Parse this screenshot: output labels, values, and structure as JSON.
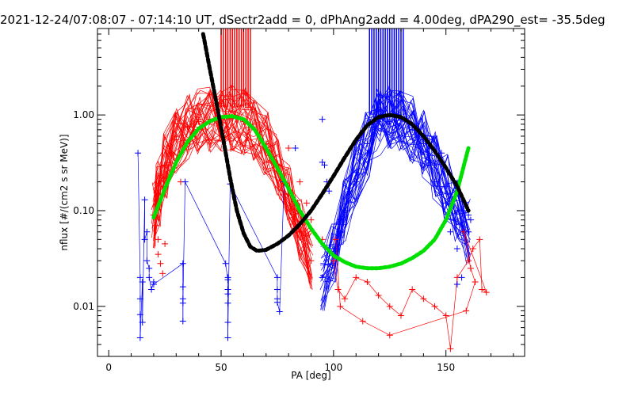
{
  "chart_data": {
    "type": "scatter",
    "title": "2021-12-24/07:08:07 - 07:14:10 UT, dSectr2add = 0, dPhAng2add = 4.00deg, dPA290_est= -35.5deg",
    "xlabel": "PA [deg]",
    "ylabel": "nflux [#/(cm2 s sr MeV)]",
    "xlim": [
      -5,
      185
    ],
    "ylim": [
      0.003,
      8.0
    ],
    "yscale": "log",
    "grid": false,
    "xticks": [
      0,
      50,
      100,
      150
    ],
    "xtick_labels": [
      "0",
      "50",
      "100",
      "150"
    ],
    "yticks": [
      0.01,
      0.1,
      1.0
    ],
    "ytick_labels": [
      "0.01",
      "0.10",
      "1.00"
    ],
    "colors": {
      "red": "#ff0000",
      "blue": "#0000ff",
      "green": "#00e000",
      "black": "#000000"
    },
    "series": [
      {
        "color": "red",
        "marker": "+",
        "style": "lines+markers",
        "x": [
          20,
          22,
          25,
          30,
          35,
          40,
          45,
          50,
          55,
          60,
          65,
          70,
          75,
          80,
          85,
          90
        ],
        "y": [
          0.09,
          0.15,
          0.3,
          0.55,
          0.75,
          0.85,
          0.9,
          0.9,
          0.92,
          0.85,
          0.7,
          0.5,
          0.3,
          0.15,
          0.06,
          0.03
        ]
      },
      {
        "color": "blue",
        "marker": "+",
        "style": "lines+markers",
        "x": [
          95,
          100,
          105,
          110,
          115,
          120,
          125,
          130,
          135,
          140,
          145,
          150,
          155,
          160
        ],
        "y": [
          0.02,
          0.04,
          0.1,
          0.25,
          0.5,
          0.85,
          0.95,
          0.9,
          0.7,
          0.5,
          0.3,
          0.18,
          0.1,
          0.06
        ]
      },
      {
        "color": "green",
        "style": "thick dotted",
        "x": [
          20,
          25,
          30,
          35,
          40,
          45,
          50,
          55,
          60,
          65,
          70,
          75,
          80,
          85,
          90,
          95,
          100,
          105,
          110,
          115,
          120,
          125,
          130,
          135,
          140,
          145,
          150,
          155,
          160
        ],
        "y": [
          0.085,
          0.17,
          0.32,
          0.52,
          0.72,
          0.86,
          0.95,
          0.97,
          0.9,
          0.7,
          0.45,
          0.28,
          0.17,
          0.1,
          0.065,
          0.045,
          0.034,
          0.029,
          0.026,
          0.025,
          0.025,
          0.026,
          0.028,
          0.032,
          0.038,
          0.05,
          0.08,
          0.16,
          0.45
        ]
      },
      {
        "color": "black",
        "style": "thick dashed",
        "x": [
          42,
          45,
          48,
          51,
          54,
          57,
          60,
          63,
          66,
          70,
          75,
          80,
          85,
          90,
          95,
          100,
          105,
          110,
          115,
          120,
          125,
          130,
          135,
          140,
          145,
          150,
          155,
          160
        ],
        "y": [
          7.0,
          3.0,
          1.3,
          0.55,
          0.22,
          0.1,
          0.058,
          0.042,
          0.038,
          0.039,
          0.045,
          0.055,
          0.072,
          0.1,
          0.15,
          0.23,
          0.36,
          0.55,
          0.78,
          0.95,
          1.0,
          0.95,
          0.8,
          0.6,
          0.42,
          0.28,
          0.18,
          0.1
        ]
      }
    ],
    "red_scatter": [
      [
        20,
        0.09
      ],
      [
        21,
        0.07
      ],
      [
        22,
        0.05
      ],
      [
        22,
        0.035
      ],
      [
        23,
        0.028
      ],
      [
        24,
        0.022
      ],
      [
        25,
        0.045
      ],
      [
        26,
        0.3
      ],
      [
        28,
        0.4
      ],
      [
        30,
        0.6
      ],
      [
        32,
        0.2
      ],
      [
        35,
        0.5
      ],
      [
        38,
        0.8
      ],
      [
        40,
        0.9
      ],
      [
        45,
        0.85
      ],
      [
        50,
        0.9
      ],
      [
        55,
        0.95
      ],
      [
        60,
        0.88
      ],
      [
        62,
        1.2
      ],
      [
        64,
        0.8
      ],
      [
        70,
        0.5
      ],
      [
        80,
        0.45
      ],
      [
        85,
        0.2
      ],
      [
        88,
        0.12
      ],
      [
        90,
        0.08
      ],
      [
        95,
        0.05
      ],
      [
        100,
        0.03
      ],
      [
        102,
        0.015
      ],
      [
        105,
        0.012
      ],
      [
        110,
        0.02
      ],
      [
        115,
        0.018
      ],
      [
        120,
        0.013
      ],
      [
        125,
        0.01
      ],
      [
        130,
        0.008
      ],
      [
        135,
        0.015
      ],
      [
        140,
        0.012
      ],
      [
        145,
        0.01
      ],
      [
        150,
        0.008
      ],
      [
        152,
        0.0036
      ],
      [
        155,
        0.02
      ],
      [
        160,
        0.03
      ],
      [
        162,
        0.04
      ],
      [
        165,
        0.05
      ],
      [
        166,
        0.015
      ],
      [
        168,
        0.014
      ],
      [
        158,
        0.06
      ],
      [
        161,
        0.025
      ],
      [
        163,
        0.018
      ],
      [
        159,
        0.009
      ],
      [
        125,
        0.005
      ],
      [
        113,
        0.007
      ],
      [
        103,
        0.01
      ],
      [
        101,
        0.05
      ]
    ],
    "blue_scatter": [
      [
        13,
        0.4
      ],
      [
        14,
        0.02
      ],
      [
        14,
        0.012
      ],
      [
        14,
        0.0082
      ],
      [
        14,
        0.0047
      ],
      [
        15,
        0.018
      ],
      [
        15,
        0.0068
      ],
      [
        16,
        0.13
      ],
      [
        16,
        0.05
      ],
      [
        17,
        0.06
      ],
      [
        17,
        0.03
      ],
      [
        18,
        0.025
      ],
      [
        18,
        0.02
      ],
      [
        19,
        0.015
      ],
      [
        20,
        0.018
      ],
      [
        20,
        0.017
      ],
      [
        33,
        0.028
      ],
      [
        33,
        0.016
      ],
      [
        33,
        0.012
      ],
      [
        33,
        0.007
      ],
      [
        33,
        0.0108
      ],
      [
        34,
        0.2
      ],
      [
        52,
        0.028
      ],
      [
        53,
        0.019
      ],
      [
        53,
        0.02
      ],
      [
        53,
        0.015
      ],
      [
        53,
        0.0135
      ],
      [
        53,
        0.0108
      ],
      [
        53,
        0.0068
      ],
      [
        53,
        0.0047
      ],
      [
        54,
        0.19
      ],
      [
        75,
        0.02
      ],
      [
        75,
        0.015
      ],
      [
        75,
        0.012
      ],
      [
        75,
        0.011
      ],
      [
        76,
        0.0088
      ],
      [
        78,
        0.2
      ],
      [
        83,
        0.45
      ],
      [
        95,
        0.32
      ],
      [
        96,
        0.3
      ],
      [
        97,
        0.2
      ],
      [
        98,
        0.16
      ],
      [
        103,
        0.08
      ],
      [
        105,
        0.1
      ],
      [
        110,
        0.2
      ],
      [
        115,
        0.4
      ],
      [
        118,
        0.8
      ],
      [
        120,
        0.9
      ],
      [
        125,
        0.85
      ],
      [
        128,
        0.88
      ],
      [
        130,
        0.88
      ],
      [
        135,
        0.75
      ],
      [
        140,
        0.55
      ],
      [
        142,
        0.3
      ],
      [
        145,
        0.2
      ],
      [
        150,
        0.12
      ],
      [
        152,
        0.06
      ],
      [
        155,
        0.04
      ],
      [
        155,
        0.017
      ],
      [
        157,
        0.02
      ],
      [
        158,
        0.1
      ],
      [
        160,
        0.09
      ],
      [
        161,
        0.08
      ],
      [
        95,
        0.9
      ],
      [
        140,
        0.6
      ],
      [
        148,
        0.4
      ]
    ],
    "vlines": [
      {
        "color": "red",
        "x": [
          50,
          51,
          52,
          53,
          54,
          55,
          56,
          57,
          58,
          59,
          60,
          61,
          62,
          63
        ],
        "y_from": 1.2,
        "y_to": 8.0
      },
      {
        "color": "blue",
        "x": [
          116,
          117,
          118,
          119,
          120,
          121,
          122,
          123,
          124,
          125,
          126,
          127,
          128,
          129,
          130,
          131
        ],
        "y_from": 1.0,
        "y_to": 8.0
      }
    ]
  }
}
